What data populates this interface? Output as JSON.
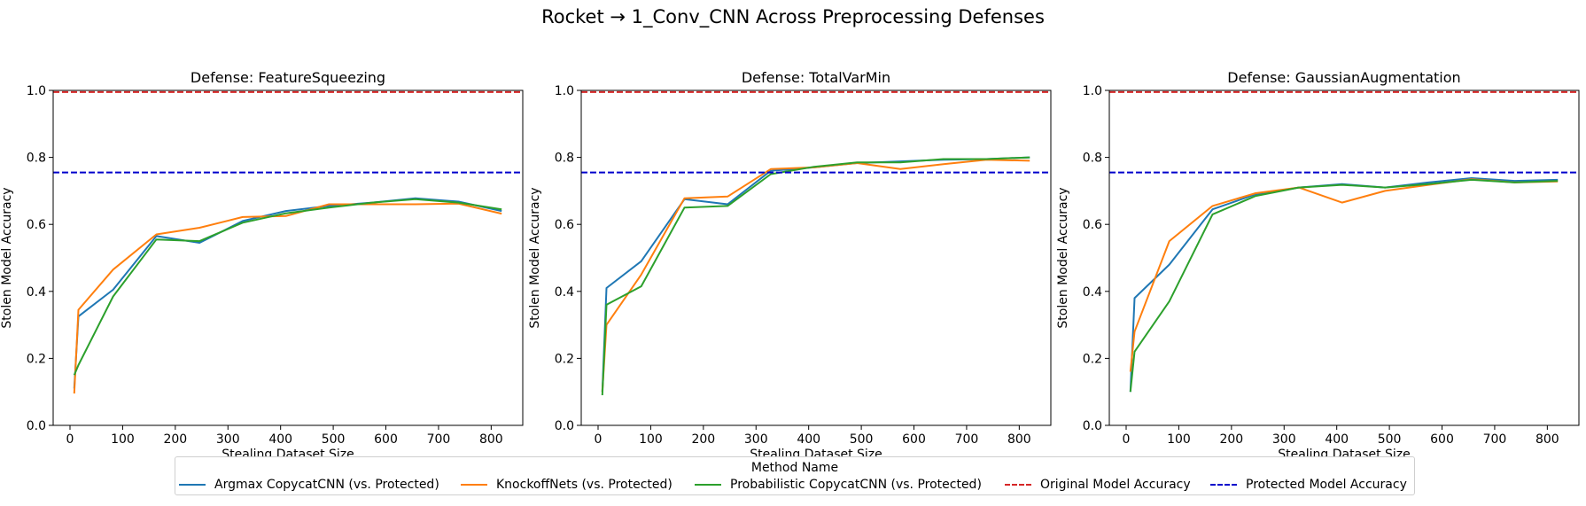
{
  "figure": {
    "title": "Rocket → 1_Conv_CNN Across Preprocessing Defenses"
  },
  "chart_data": [
    {
      "type": "line",
      "title": "Defense: FeatureSqueezing",
      "xlabel": "Stealing Dataset Size",
      "ylabel": "Stolen Model Accuracy",
      "xlim": [
        -32,
        860
      ],
      "ylim": [
        0,
        1.0
      ],
      "xticks": [
        0,
        100,
        200,
        300,
        400,
        500,
        600,
        700,
        800
      ],
      "yticks": [
        0.0,
        0.2,
        0.4,
        0.6,
        0.8,
        1.0
      ],
      "grid": false,
      "hlines": [
        {
          "name": "Original Model Accuracy",
          "y": 0.995,
          "color": "#d62728",
          "dash": true
        },
        {
          "name": "Protected Model Accuracy",
          "y": 0.755,
          "color": "#0000cc",
          "dash": true
        }
      ],
      "series": [
        {
          "name": "Argmax CopycatCNN (vs. Protected)",
          "color": "#1f77b4",
          "x": [
            8,
            16,
            82,
            164,
            246,
            328,
            410,
            492,
            574,
            656,
            738,
            820
          ],
          "y": [
            0.11,
            0.325,
            0.405,
            0.565,
            0.545,
            0.61,
            0.64,
            0.655,
            0.665,
            0.678,
            0.668,
            0.64
          ]
        },
        {
          "name": "KnockoffNets (vs. Protected)",
          "color": "#ff7f0e",
          "x": [
            8,
            16,
            82,
            164,
            246,
            328,
            410,
            492,
            574,
            656,
            738,
            820
          ],
          "y": [
            0.095,
            0.345,
            0.465,
            0.57,
            0.59,
            0.622,
            0.625,
            0.66,
            0.66,
            0.66,
            0.662,
            0.632
          ]
        },
        {
          "name": "Probabilistic CopycatCNN (vs. Protected)",
          "color": "#2ca02c",
          "x": [
            8,
            16,
            82,
            164,
            246,
            328,
            410,
            492,
            574,
            656,
            738,
            820
          ],
          "y": [
            0.15,
            0.18,
            0.385,
            0.555,
            0.55,
            0.605,
            0.633,
            0.65,
            0.665,
            0.675,
            0.665,
            0.645
          ]
        }
      ]
    },
    {
      "type": "line",
      "title": "Defense: TotalVarMin",
      "xlabel": "Stealing Dataset Size",
      "ylabel": "Stolen Model Accuracy",
      "xlim": [
        -32,
        860
      ],
      "ylim": [
        0,
        1.0
      ],
      "xticks": [
        0,
        100,
        200,
        300,
        400,
        500,
        600,
        700,
        800
      ],
      "yticks": [
        0.0,
        0.2,
        0.4,
        0.6,
        0.8,
        1.0
      ],
      "grid": false,
      "hlines": [
        {
          "name": "Original Model Accuracy",
          "y": 0.995,
          "color": "#d62728",
          "dash": true
        },
        {
          "name": "Protected Model Accuracy",
          "y": 0.755,
          "color": "#0000cc",
          "dash": true
        }
      ],
      "series": [
        {
          "name": "Argmax CopycatCNN (vs. Protected)",
          "color": "#1f77b4",
          "x": [
            8,
            16,
            82,
            164,
            246,
            328,
            410,
            492,
            574,
            656,
            738,
            820
          ],
          "y": [
            0.1,
            0.41,
            0.49,
            0.675,
            0.66,
            0.76,
            0.77,
            0.783,
            0.788,
            0.793,
            0.795,
            0.8
          ]
        },
        {
          "name": "KnockoffNets (vs. Protected)",
          "color": "#ff7f0e",
          "x": [
            8,
            16,
            82,
            164,
            246,
            328,
            410,
            492,
            574,
            656,
            738,
            820
          ],
          "y": [
            0.1,
            0.3,
            0.45,
            0.678,
            0.683,
            0.765,
            0.77,
            0.783,
            0.765,
            0.78,
            0.793,
            0.79
          ]
        },
        {
          "name": "Probabilistic CopycatCNN (vs. Protected)",
          "color": "#2ca02c",
          "x": [
            8,
            16,
            82,
            164,
            246,
            328,
            410,
            492,
            574,
            656,
            738,
            820
          ],
          "y": [
            0.09,
            0.36,
            0.415,
            0.65,
            0.655,
            0.75,
            0.772,
            0.785,
            0.785,
            0.795,
            0.795,
            0.8
          ]
        }
      ]
    },
    {
      "type": "line",
      "title": "Defense: GaussianAugmentation",
      "xlabel": "Stealing Dataset Size",
      "ylabel": "Stolen Model Accuracy",
      "xlim": [
        -32,
        860
      ],
      "ylim": [
        0,
        1.0
      ],
      "xticks": [
        0,
        100,
        200,
        300,
        400,
        500,
        600,
        700,
        800
      ],
      "yticks": [
        0.0,
        0.2,
        0.4,
        0.6,
        0.8,
        1.0
      ],
      "grid": false,
      "hlines": [
        {
          "name": "Original Model Accuracy",
          "y": 0.995,
          "color": "#d62728",
          "dash": true
        },
        {
          "name": "Protected Model Accuracy",
          "y": 0.755,
          "color": "#0000cc",
          "dash": true
        }
      ],
      "series": [
        {
          "name": "Argmax CopycatCNN (vs. Protected)",
          "color": "#1f77b4",
          "x": [
            8,
            16,
            82,
            164,
            246,
            328,
            410,
            492,
            574,
            656,
            738,
            820
          ],
          "y": [
            0.1,
            0.38,
            0.48,
            0.645,
            0.69,
            0.71,
            0.72,
            0.71,
            0.725,
            0.738,
            0.73,
            0.733
          ]
        },
        {
          "name": "KnockoffNets (vs. Protected)",
          "color": "#ff7f0e",
          "x": [
            8,
            16,
            82,
            164,
            246,
            328,
            410,
            492,
            574,
            656,
            738,
            820
          ],
          "y": [
            0.16,
            0.28,
            0.55,
            0.655,
            0.693,
            0.71,
            0.665,
            0.7,
            0.718,
            0.735,
            0.725,
            0.728
          ]
        },
        {
          "name": "Probabilistic CopycatCNN (vs. Protected)",
          "color": "#2ca02c",
          "x": [
            8,
            16,
            82,
            164,
            246,
            328,
            410,
            492,
            574,
            656,
            738,
            820
          ],
          "y": [
            0.1,
            0.22,
            0.37,
            0.63,
            0.685,
            0.71,
            0.718,
            0.71,
            0.72,
            0.733,
            0.725,
            0.73
          ]
        }
      ]
    }
  ],
  "legend": {
    "title": "Method Name",
    "placement": "bottom-center",
    "items": [
      {
        "label": "Argmax CopycatCNN (vs. Protected)",
        "color": "#1f77b4",
        "dash": false
      },
      {
        "label": "KnockoffNets (vs. Protected)",
        "color": "#ff7f0e",
        "dash": false
      },
      {
        "label": "Probabilistic CopycatCNN (vs. Protected)",
        "color": "#2ca02c",
        "dash": false
      },
      {
        "label": "Original Model Accuracy",
        "color": "#d62728",
        "dash": true
      },
      {
        "label": "Protected Model Accuracy",
        "color": "#0000cc",
        "dash": true
      }
    ]
  }
}
